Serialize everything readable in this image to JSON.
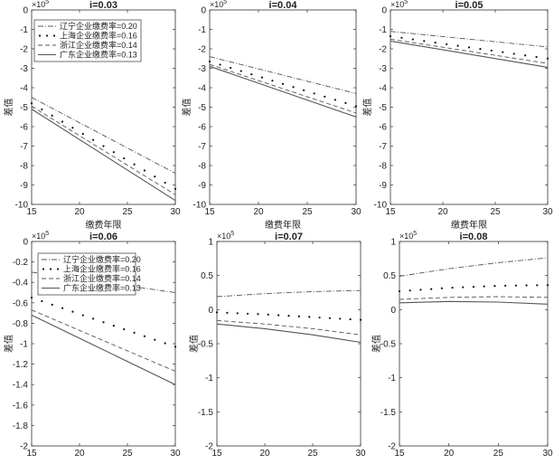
{
  "figure": {
    "colors": {
      "axes": "#333333",
      "line": "#555555",
      "background": "#ffffff"
    }
  },
  "chart_data": [
    {
      "type": "line",
      "title": "i=0.03",
      "xlabel": "缴费年限",
      "ylabel": "差值",
      "exponent_label": "×10",
      "exponent_power": "5",
      "x": [
        15,
        30
      ],
      "xticks": [
        15,
        20,
        25,
        30
      ],
      "xlim": [
        15,
        30
      ],
      "ylim": [
        -10,
        0
      ],
      "yticks": [
        -10,
        -9,
        -8,
        -7,
        -6,
        -5,
        -4,
        -3,
        -2,
        -1,
        0
      ],
      "legend": "top-left",
      "series": [
        {
          "name": "辽宁企业缴费率=0.20",
          "style": "dashdot",
          "values": [
            -4.5,
            -8.4
          ]
        },
        {
          "name": "上海企业缴费率=0.16",
          "style": "dotted",
          "values": [
            -4.8,
            -9.2
          ]
        },
        {
          "name": "浙江企业缴费率=0.14",
          "style": "dashed",
          "values": [
            -4.95,
            -9.5
          ]
        },
        {
          "name": "广东企业缴费率=0.13",
          "style": "solid",
          "values": [
            -5.1,
            -9.8
          ]
        }
      ]
    },
    {
      "type": "line",
      "title": "i=0.04",
      "xlabel": "缴费年限",
      "ylabel": "差值",
      "exponent_label": "×10",
      "exponent_power": "5",
      "x": [
        15,
        30
      ],
      "xticks": [
        15,
        20,
        25,
        30
      ],
      "xlim": [
        15,
        30
      ],
      "ylim": [
        -10,
        0
      ],
      "yticks": [
        -10,
        -9,
        -8,
        -7,
        -6,
        -5,
        -4,
        -3,
        -2,
        -1,
        0
      ],
      "series": [
        {
          "name": "辽宁企业缴费率=0.20",
          "style": "dashdot",
          "values": [
            -2.4,
            -4.3
          ]
        },
        {
          "name": "上海企业缴费率=0.16",
          "style": "dotted",
          "values": [
            -2.65,
            -4.95
          ]
        },
        {
          "name": "浙江企业缴费率=0.14",
          "style": "dashed",
          "values": [
            -2.8,
            -5.3
          ]
        },
        {
          "name": "广东企业缴费率=0.13",
          "style": "solid",
          "values": [
            -2.9,
            -5.5
          ]
        }
      ]
    },
    {
      "type": "line",
      "title": "i=0.05",
      "xlabel": "缴费年限",
      "ylabel": "差值",
      "exponent_label": "×10",
      "exponent_power": "5",
      "x": [
        15,
        30
      ],
      "xticks": [
        15,
        20,
        25,
        30
      ],
      "xlim": [
        15,
        30
      ],
      "ylim": [
        -10,
        0
      ],
      "yticks": [
        -10,
        -9,
        -8,
        -7,
        -6,
        -5,
        -4,
        -3,
        -2,
        -1,
        0
      ],
      "series": [
        {
          "name": "辽宁企业缴费率=0.20",
          "style": "dashdot",
          "values": [
            -1.1,
            -1.9
          ]
        },
        {
          "name": "上海企业缴费率=0.16",
          "style": "dotted",
          "values": [
            -1.35,
            -2.5
          ]
        },
        {
          "name": "浙江企业缴费率=0.14",
          "style": "dashed",
          "values": [
            -1.5,
            -2.75
          ]
        },
        {
          "name": "广东企业缴费率=0.13",
          "style": "solid",
          "values": [
            -1.6,
            -2.95
          ]
        }
      ]
    },
    {
      "type": "line",
      "title": "i=0.06",
      "xlabel": "缴费年限",
      "ylabel": "差值",
      "exponent_label": "×10",
      "exponent_power": "5",
      "x": [
        15,
        30
      ],
      "xticks": [
        15,
        20,
        25,
        30
      ],
      "xlim": [
        15,
        30
      ],
      "ylim": [
        -2,
        0
      ],
      "yticks": [
        -2,
        -1.8,
        -1.6,
        -1.4,
        -1.2,
        -1,
        -0.8,
        -0.6,
        -0.4,
        -0.2,
        0
      ],
      "legend": "top-right",
      "series": [
        {
          "name": "辽宁企业缴费率=0.20",
          "style": "dashdot",
          "values": [
            -0.3,
            -0.5
          ]
        },
        {
          "name": "上海企业缴费率=0.16",
          "style": "dotted",
          "values": [
            -0.55,
            -1.03
          ]
        },
        {
          "name": "浙江企业缴费率=0.14",
          "style": "dashed",
          "values": [
            -0.67,
            -1.27
          ]
        },
        {
          "name": "广东企业缴费率=0.13",
          "style": "solid",
          "values": [
            -0.72,
            -1.4
          ]
        }
      ]
    },
    {
      "type": "line",
      "title": "i=0.07",
      "xlabel": "缴费年限",
      "ylabel": "差值",
      "exponent_label": "×10",
      "exponent_power": "5",
      "x": [
        15,
        20,
        25,
        30
      ],
      "xticks": [
        15,
        20,
        25,
        30
      ],
      "xlim": [
        15,
        30
      ],
      "ylim": [
        -2,
        1
      ],
      "yticks": [
        -2,
        -1.5,
        -1,
        -0.5,
        0,
        0.5,
        1
      ],
      "series": [
        {
          "name": "辽宁企业缴费率=0.20",
          "style": "dashdot",
          "values": [
            0.19,
            0.235,
            0.265,
            0.28
          ]
        },
        {
          "name": "上海企业缴费率=0.16",
          "style": "dotted",
          "values": [
            -0.04,
            -0.07,
            -0.11,
            -0.15
          ]
        },
        {
          "name": "浙江企业缴费率=0.14",
          "style": "dashed",
          "values": [
            -0.16,
            -0.21,
            -0.28,
            -0.37
          ]
        },
        {
          "name": "广东企业缴费率=0.13",
          "style": "solid",
          "values": [
            -0.21,
            -0.28,
            -0.37,
            -0.48
          ]
        }
      ]
    },
    {
      "type": "line",
      "title": "i=0.08",
      "xlabel": "缴费年限",
      "ylabel": "差值",
      "exponent_label": "×10",
      "exponent_power": "5",
      "x": [
        15,
        20,
        25,
        30
      ],
      "xticks": [
        15,
        20,
        25,
        30
      ],
      "xlim": [
        15,
        30
      ],
      "ylim": [
        -2,
        1
      ],
      "yticks": [
        -2,
        -1.5,
        -1,
        -0.5,
        0,
        0.5,
        1
      ],
      "series": [
        {
          "name": "辽宁企业缴费率=0.20",
          "style": "dashdot",
          "values": [
            0.49,
            0.6,
            0.69,
            0.76
          ]
        },
        {
          "name": "上海企业缴费率=0.16",
          "style": "dotted",
          "values": [
            0.27,
            0.32,
            0.35,
            0.36
          ]
        },
        {
          "name": "浙江企业缴费率=0.14",
          "style": "dashed",
          "values": [
            0.15,
            0.18,
            0.19,
            0.18
          ]
        },
        {
          "name": "广东企业缴费率=0.13",
          "style": "solid",
          "values": [
            0.1,
            0.12,
            0.11,
            0.08
          ]
        }
      ]
    }
  ]
}
